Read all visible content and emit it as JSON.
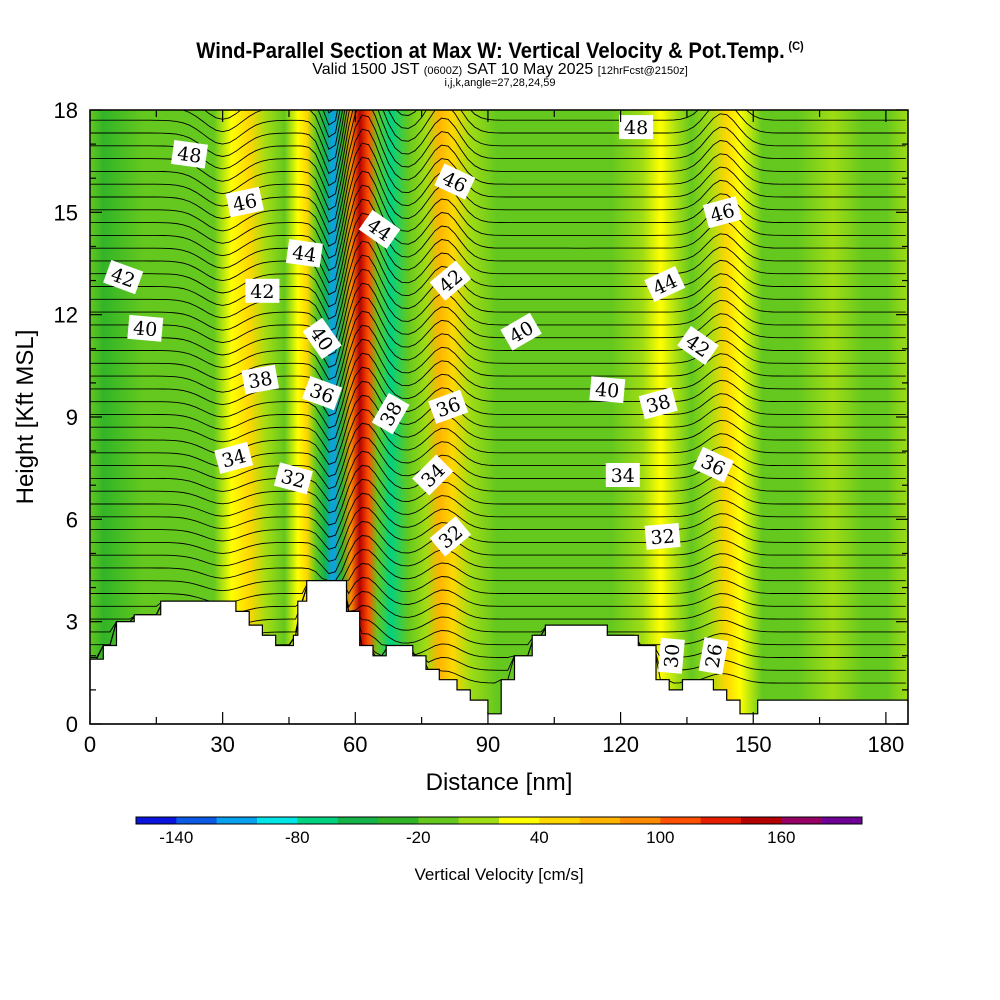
{
  "header": {
    "title": "Wind-Parallel Section at Max W: Vertical Velocity & Pot.Temp.",
    "copyright": "(C)",
    "valid_prefix": "Valid 1500 JST",
    "valid_z": "(0600Z)",
    "valid_date": "SAT 10 May 2025",
    "forecast": "[12hrFcst@2150z]",
    "indices": "i,j,k,angle=27,28,24,59"
  },
  "chart_data": {
    "type": "contour-section",
    "xlabel": "Distance [nm]",
    "ylabel": "Height [Kft MSL]",
    "xlim": [
      0,
      185
    ],
    "ylim": [
      0,
      18
    ],
    "xticks": [
      "0",
      "30",
      "60",
      "90",
      "120",
      "150",
      "180"
    ],
    "yticks": [
      "0",
      "3",
      "6",
      "9",
      "12",
      "15",
      "18"
    ],
    "colorbar": {
      "label": "Vertical Velocity [cm/s]",
      "tick_labels": [
        "-140",
        "-80",
        "-20",
        "40",
        "100",
        "160"
      ],
      "colors": [
        "#0a14dc",
        "#0a5ae6",
        "#0aa0f0",
        "#00e6e6",
        "#00d282",
        "#14b44a",
        "#32b428",
        "#64c81e",
        "#a0dc14",
        "#ffff00",
        "#ffd700",
        "#ffb400",
        "#ff8c00",
        "#ff5000",
        "#e61e00",
        "#b40000",
        "#960064",
        "#6e0096"
      ]
    },
    "vertical_velocity_bands": [
      {
        "x": 0,
        "w": -20
      },
      {
        "x": 3,
        "w": -30
      },
      {
        "x": 12,
        "w": -20
      },
      {
        "x": 22,
        "w": -20
      },
      {
        "x": 28,
        "w": -10
      },
      {
        "x": 32,
        "w": 20
      },
      {
        "x": 36,
        "w": 55
      },
      {
        "x": 40,
        "w": 10
      },
      {
        "x": 44,
        "w": -20
      },
      {
        "x": 47,
        "w": 20
      },
      {
        "x": 49,
        "w": 55
      },
      {
        "x": 51,
        "w": -10
      },
      {
        "x": 53,
        "w": -55
      },
      {
        "x": 55,
        "w": -110
      },
      {
        "x": 57,
        "w": -40
      },
      {
        "x": 59,
        "w": 90
      },
      {
        "x": 61,
        "w": 145
      },
      {
        "x": 63,
        "w": 115
      },
      {
        "x": 65,
        "w": -10
      },
      {
        "x": 68,
        "w": -80
      },
      {
        "x": 72,
        "w": -20
      },
      {
        "x": 76,
        "w": 15
      },
      {
        "x": 79,
        "w": 70
      },
      {
        "x": 82,
        "w": 40
      },
      {
        "x": 86,
        "w": 5
      },
      {
        "x": 92,
        "w": -20
      },
      {
        "x": 100,
        "w": -10
      },
      {
        "x": 110,
        "w": -20
      },
      {
        "x": 118,
        "w": -10
      },
      {
        "x": 125,
        "w": 5
      },
      {
        "x": 129,
        "w": 25
      },
      {
        "x": 133,
        "w": 10
      },
      {
        "x": 136,
        "w": -20
      },
      {
        "x": 140,
        "w": 5
      },
      {
        "x": 144,
        "w": 45
      },
      {
        "x": 147,
        "w": 20
      },
      {
        "x": 152,
        "w": -20
      },
      {
        "x": 160,
        "w": -10
      },
      {
        "x": 168,
        "w": 5
      },
      {
        "x": 175,
        "w": -20
      },
      {
        "x": 180,
        "w": -10
      },
      {
        "x": 185,
        "w": 5
      }
    ],
    "terrain": [
      [
        0,
        1.9
      ],
      [
        3,
        1.9
      ],
      [
        3,
        2.3
      ],
      [
        6,
        2.3
      ],
      [
        6,
        3.0
      ],
      [
        10,
        3.0
      ],
      [
        10,
        3.2
      ],
      [
        16,
        3.2
      ],
      [
        16,
        3.6
      ],
      [
        33,
        3.6
      ],
      [
        33,
        3.3
      ],
      [
        36,
        3.3
      ],
      [
        36,
        2.9
      ],
      [
        39,
        2.9
      ],
      [
        39,
        2.6
      ],
      [
        42,
        2.6
      ],
      [
        42,
        2.3
      ],
      [
        46,
        2.3
      ],
      [
        46,
        2.6
      ],
      [
        47,
        2.6
      ],
      [
        47,
        3.6
      ],
      [
        49,
        3.6
      ],
      [
        49,
        4.2
      ],
      [
        58,
        4.2
      ],
      [
        58,
        3.3
      ],
      [
        61,
        3.3
      ],
      [
        61,
        2.3
      ],
      [
        64,
        2.3
      ],
      [
        64,
        2.0
      ],
      [
        67,
        2.0
      ],
      [
        67,
        2.3
      ],
      [
        73,
        2.3
      ],
      [
        73,
        2.0
      ],
      [
        76,
        2.0
      ],
      [
        76,
        1.6
      ],
      [
        79,
        1.6
      ],
      [
        79,
        1.3
      ],
      [
        83,
        1.3
      ],
      [
        83,
        1.0
      ],
      [
        86,
        1.0
      ],
      [
        86,
        0.7
      ],
      [
        90,
        0.7
      ],
      [
        90,
        0.3
      ],
      [
        93,
        0.3
      ],
      [
        93,
        1.3
      ],
      [
        96,
        1.3
      ],
      [
        96,
        2.0
      ],
      [
        100,
        2.0
      ],
      [
        100,
        2.6
      ],
      [
        103,
        2.6
      ],
      [
        103,
        2.9
      ],
      [
        117,
        2.9
      ],
      [
        117,
        2.6
      ],
      [
        124,
        2.6
      ],
      [
        124,
        2.3
      ],
      [
        128,
        2.3
      ],
      [
        128,
        1.3
      ],
      [
        131,
        1.3
      ],
      [
        131,
        1.0
      ],
      [
        134,
        1.0
      ],
      [
        134,
        1.3
      ],
      [
        141,
        1.3
      ],
      [
        141,
        1.0
      ],
      [
        144,
        1.0
      ],
      [
        144,
        0.7
      ],
      [
        147,
        0.7
      ],
      [
        147,
        0.3
      ],
      [
        151,
        0.3
      ],
      [
        151,
        0.7
      ],
      [
        185,
        0.7
      ]
    ],
    "theta_labels": [
      {
        "text": "48",
        "x": 22.5,
        "y": 16.7,
        "rot": 8
      },
      {
        "text": "48",
        "x": 123.5,
        "y": 17.5,
        "rot": 0
      },
      {
        "text": "46",
        "x": 35,
        "y": 15.3,
        "rot": -12
      },
      {
        "text": "46",
        "x": 82.5,
        "y": 15.9,
        "rot": 25
      },
      {
        "text": "46",
        "x": 143,
        "y": 15.0,
        "rot": -15
      },
      {
        "text": "44",
        "x": 48.5,
        "y": 13.8,
        "rot": 8
      },
      {
        "text": "44",
        "x": 65.5,
        "y": 14.5,
        "rot": 35
      },
      {
        "text": "44",
        "x": 130,
        "y": 12.9,
        "rot": -25
      },
      {
        "text": "42",
        "x": 7.5,
        "y": 13.1,
        "rot": 20
      },
      {
        "text": "42",
        "x": 39,
        "y": 12.7,
        "rot": 0
      },
      {
        "text": "42",
        "x": 81.5,
        "y": 13.0,
        "rot": -40
      },
      {
        "text": "42",
        "x": 137.5,
        "y": 11.1,
        "rot": 35
      },
      {
        "text": "40",
        "x": 12.5,
        "y": 11.6,
        "rot": 5
      },
      {
        "text": "40",
        "x": 52.5,
        "y": 11.3,
        "rot": 55
      },
      {
        "text": "40",
        "x": 97.5,
        "y": 11.5,
        "rot": -30
      },
      {
        "text": "40",
        "x": 117,
        "y": 9.8,
        "rot": 5
      },
      {
        "text": "38",
        "x": 38.5,
        "y": 10.1,
        "rot": -10
      },
      {
        "text": "38",
        "x": 68,
        "y": 9.1,
        "rot": -60
      },
      {
        "text": "38",
        "x": 128.5,
        "y": 9.4,
        "rot": -15
      },
      {
        "text": "36",
        "x": 52.5,
        "y": 9.7,
        "rot": 20
      },
      {
        "text": "36",
        "x": 81,
        "y": 9.3,
        "rot": -20
      },
      {
        "text": "36",
        "x": 141,
        "y": 7.6,
        "rot": 25
      },
      {
        "text": "34",
        "x": 32.5,
        "y": 7.8,
        "rot": -15
      },
      {
        "text": "34",
        "x": 77.5,
        "y": 7.3,
        "rot": -45
      },
      {
        "text": "34",
        "x": 120.5,
        "y": 7.3,
        "rot": 0
      },
      {
        "text": "32",
        "x": 46,
        "y": 7.2,
        "rot": 15
      },
      {
        "text": "32",
        "x": 81.5,
        "y": 5.5,
        "rot": -40
      },
      {
        "text": "32",
        "x": 129.5,
        "y": 5.5,
        "rot": -5
      },
      {
        "text": "30",
        "x": 131.5,
        "y": 2.0,
        "rot": -85
      },
      {
        "text": "26",
        "x": 141,
        "y": 2.0,
        "rot": -80
      }
    ]
  }
}
